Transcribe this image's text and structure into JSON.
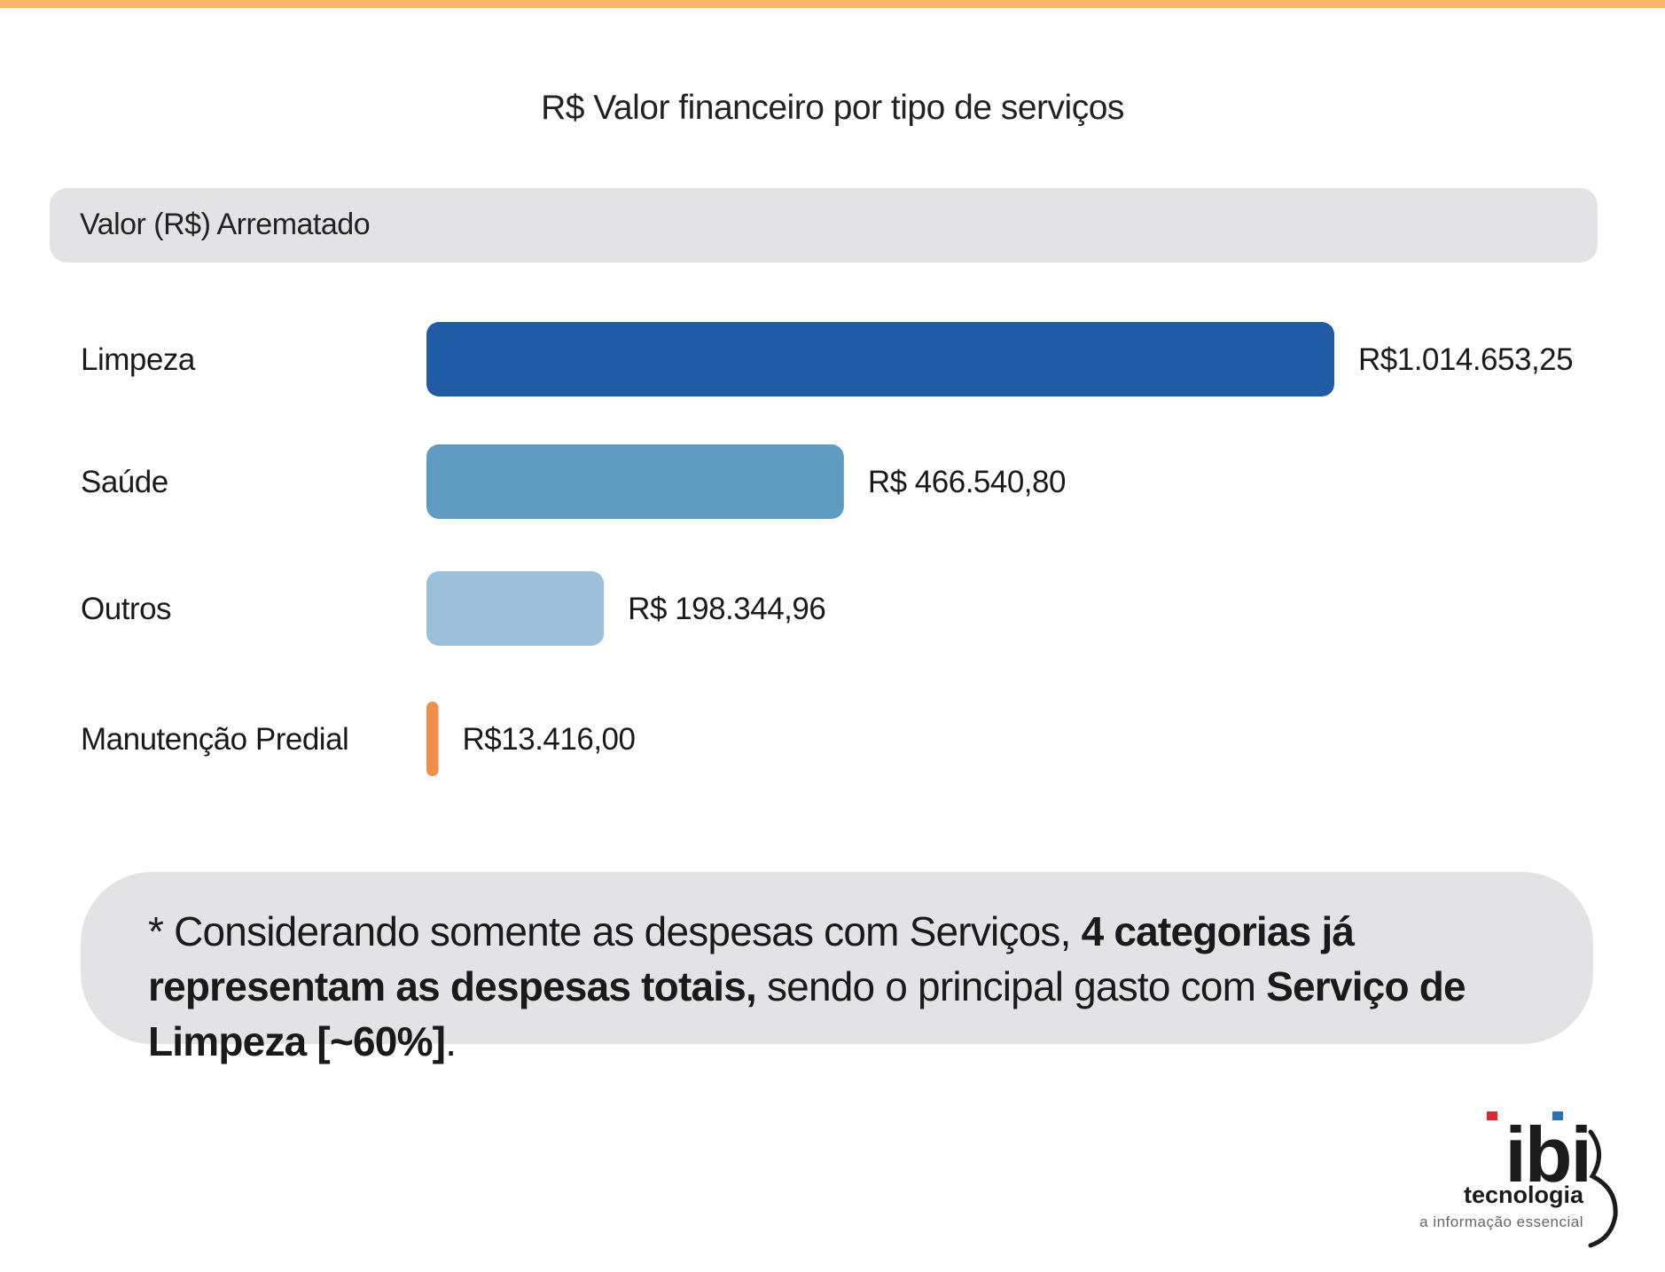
{
  "accent_color": "#f9b66a",
  "chart_data": {
    "type": "bar",
    "orientation": "horizontal",
    "title": "R$ Valor financeiro por tipo de serviços",
    "series_label": "Valor (R$) Arrematado",
    "categories": [
      "Limpeza",
      "Saúde",
      "Outros",
      "Manutenção Predial"
    ],
    "values": [
      1014653.25,
      466540.8,
      198344.96,
      13416.0
    ],
    "value_labels": [
      "R$1.014.653,25",
      "R$ 466.540,80",
      "R$ 198.344,96",
      "R$13.416,00"
    ],
    "colors": [
      "#215ba6",
      "#5f9bc2",
      "#9cc0da",
      "#ef8f4b"
    ],
    "grid": false
  },
  "note": {
    "prefix": "* Considerando somente as despesas com Serviços, ",
    "bold1": "4 categorias já representam as despesas totais,",
    "middle": " sendo o principal gasto com ",
    "bold2": "Serviço de Limpeza [~60%]",
    "suffix": "."
  },
  "logo": {
    "mark": "ibi",
    "brand": "tecnologia",
    "tagline": "a informação essencial",
    "dot_colors": [
      "#e0262f",
      "#2a70b8"
    ]
  }
}
